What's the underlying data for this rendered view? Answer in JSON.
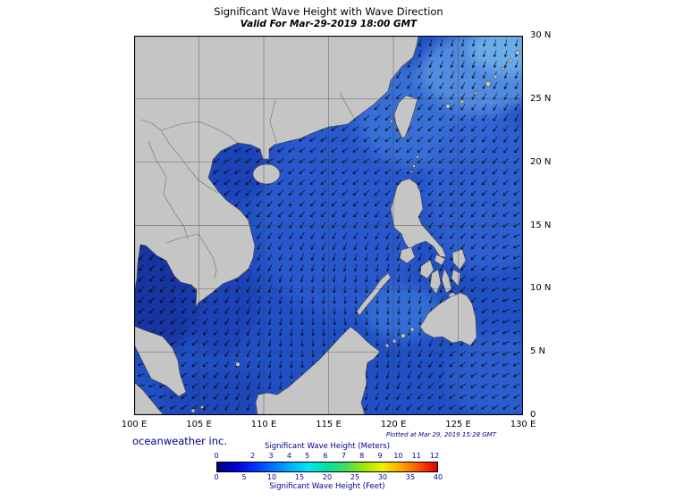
{
  "header": {
    "title": "Significant Wave Height with Wave Direction",
    "subtitle": "Valid For Mar-29-2019 18:00 GMT"
  },
  "map": {
    "lat_ticks": [
      "30 N",
      "25 N",
      "20 N",
      "15 N",
      "10 N",
      "5 N",
      "0"
    ],
    "lon_ticks": [
      "100 E",
      "105 E",
      "110 E",
      "115 E",
      "120 E",
      "125 E",
      "130 E"
    ]
  },
  "footer": {
    "credit": "oceanweather inc.",
    "plotted": "Plotted at Mar 29, 2019 15:28 GMT"
  },
  "legend": {
    "meters_label": "Significant Wave Height (Meters)",
    "feet_label": "Significant Wave Height (Feet)",
    "meters_ticks": [
      "0",
      "2",
      "3",
      "4",
      "5",
      "6",
      "7",
      "8",
      "9",
      "10",
      "11",
      "12"
    ],
    "feet_ticks": [
      "0",
      "5",
      "10",
      "15",
      "20",
      "25",
      "30",
      "35",
      "40"
    ],
    "colors": [
      "#000080",
      "#0000d0",
      "#0030ff",
      "#0070ff",
      "#00b0ff",
      "#00e8f0",
      "#00e0a0",
      "#40e060",
      "#a0e800",
      "#f0f000",
      "#ffa800",
      "#ff5000",
      "#e00000"
    ],
    "text_color": "#00008b"
  },
  "ocean_colors": {
    "base": "#2150c4",
    "low": "#16339e",
    "high": "#6fb0ec"
  }
}
